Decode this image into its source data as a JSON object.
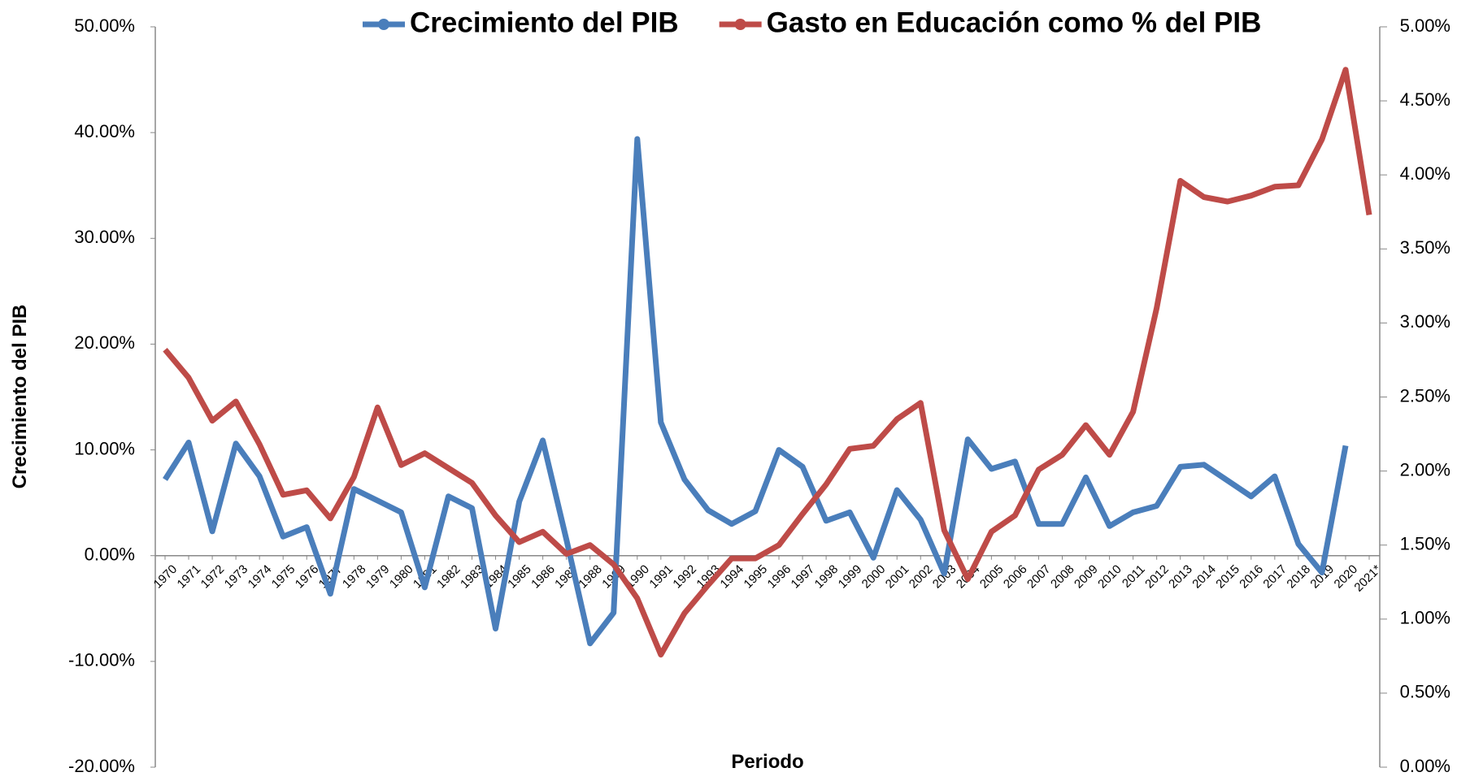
{
  "chart_data": {
    "type": "line",
    "categories": [
      "1970",
      "1971",
      "1972",
      "1973",
      "1974",
      "1975",
      "1976",
      "1977",
      "1978",
      "1979",
      "1980",
      "1981",
      "1982",
      "1983",
      "1984",
      "1985",
      "1986",
      "1987",
      "1988",
      "1989",
      "1990",
      "1991",
      "1992",
      "1993",
      "1994",
      "1995",
      "1996",
      "1997",
      "1998",
      "1999",
      "2000",
      "2001",
      "2002",
      "2003",
      "2004",
      "2005",
      "2006",
      "2007",
      "2008",
      "2009",
      "2010",
      "2011",
      "2012",
      "2013",
      "2014",
      "2015",
      "2016",
      "2017",
      "2018",
      "2019",
      "2020",
      "2021*"
    ],
    "series": [
      {
        "name": "Crecimiento del PIB",
        "color": "#4a7ebb",
        "values": [
          7.2,
          10.7,
          2.3,
          10.6,
          7.5,
          1.8,
          2.7,
          -3.6,
          6.3,
          5.2,
          4.1,
          -3.0,
          5.6,
          4.5,
          -6.9,
          5.1,
          10.9,
          1.5,
          -8.3,
          -5.4,
          39.4,
          12.6,
          7.2,
          4.3,
          3.0,
          4.2,
          10.0,
          8.4,
          3.3,
          4.1,
          -0.2,
          6.2,
          3.4,
          -1.7,
          11.0,
          8.2,
          8.9,
          3.0,
          3.0,
          7.4,
          2.8,
          4.1,
          4.7,
          8.4,
          8.6,
          7.1,
          5.6,
          7.5,
          1.1,
          -1.6,
          10.4,
          null
        ]
      },
      {
        "name": "Gasto en Educación como % del PIB",
        "color": "#be4b48",
        "axis": "y2",
        "values": [
          2.82,
          2.63,
          2.34,
          2.47,
          2.18,
          1.84,
          1.87,
          1.68,
          1.96,
          2.43,
          2.04,
          2.12,
          2.02,
          1.92,
          1.7,
          1.52,
          1.59,
          1.44,
          1.5,
          1.37,
          1.14,
          0.76,
          1.04,
          1.23,
          1.41,
          1.41,
          1.5,
          1.71,
          1.91,
          2.15,
          2.17,
          2.35,
          2.46,
          1.6,
          1.27,
          1.59,
          1.7,
          2.01,
          2.11,
          2.31,
          2.11,
          2.4,
          3.1,
          3.96,
          3.85,
          3.82,
          3.86,
          3.92,
          3.93,
          4.24,
          4.71,
          3.73
        ]
      }
    ],
    "x_label": "Periodo",
    "y_label": "Crecimiento del PIB",
    "ylim": [
      -20,
      50
    ],
    "yticks": [
      {
        "value": -20,
        "label": "-20.00%"
      },
      {
        "value": -10,
        "label": "-10.00%"
      },
      {
        "value": 0,
        "label": "0.00%"
      },
      {
        "value": 10,
        "label": "10.00%"
      },
      {
        "value": 20,
        "label": "20.00%"
      },
      {
        "value": 30,
        "label": "30.00%"
      },
      {
        "value": 40,
        "label": "40.00%"
      },
      {
        "value": 50,
        "label": "50.00%"
      }
    ],
    "y2lim": [
      0,
      5
    ],
    "y2ticks": [
      {
        "value": 0,
        "label": "0.00%"
      },
      {
        "value": 0.5,
        "label": "0.50%"
      },
      {
        "value": 1,
        "label": "1.00%"
      },
      {
        "value": 1.5,
        "label": "1.50%"
      },
      {
        "value": 2,
        "label": "2.00%"
      },
      {
        "value": 2.5,
        "label": "2.50%"
      },
      {
        "value": 3,
        "label": "3.00%"
      },
      {
        "value": 3.5,
        "label": "3.50%"
      },
      {
        "value": 4,
        "label": "4.00%"
      },
      {
        "value": 4.5,
        "label": "4.50%"
      },
      {
        "value": 5,
        "label": "5.00%"
      }
    ],
    "legend": "top",
    "grid": false
  }
}
